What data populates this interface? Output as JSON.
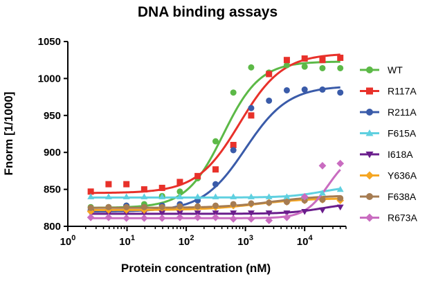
{
  "chart_data": {
    "type": "scatter",
    "title": "DNA binding assays",
    "xlabel": "Protein concentration (nM)",
    "ylabel": "Fnorm [1/1000]",
    "xscale": "log",
    "xlim": [
      1,
      50000
    ],
    "ylim": [
      800,
      1050
    ],
    "grid": false,
    "legend_position": "right",
    "x_ticks": [
      {
        "value": 1,
        "base": "10",
        "exp": "0"
      },
      {
        "value": 10,
        "base": "10",
        "exp": "1"
      },
      {
        "value": 100,
        "base": "10",
        "exp": "2"
      },
      {
        "value": 1000,
        "base": "10",
        "exp": "3"
      },
      {
        "value": 10000,
        "base": "10",
        "exp": "4"
      }
    ],
    "y_ticks": [
      "800",
      "850",
      "900",
      "950",
      "1000",
      "1050"
    ],
    "x": [
      2.44,
      4.88,
      9.77,
      19.5,
      39.1,
      78.1,
      156,
      313,
      625,
      1250,
      2500,
      5000,
      10000,
      20000,
      40000
    ],
    "series": [
      {
        "name": "WT",
        "color": "#5cb947",
        "marker": "circle",
        "values": [
          826,
          826,
          828,
          830,
          841,
          847,
          865,
          915,
          981,
          1015,
          1008,
          1018,
          1016,
          1014,
          1014
        ],
        "fit": {
          "bottom": 825,
          "top": 1023,
          "ec50": 420,
          "hill": 1.4
        }
      },
      {
        "name": "R117A",
        "color": "#e8312a",
        "marker": "square",
        "values": [
          847,
          857,
          857,
          850,
          852,
          860,
          868,
          877,
          910,
          950,
          1006,
          1025,
          1027,
          1025,
          1028
        ],
        "fit": {
          "bottom": 845,
          "top": 1034,
          "ec50": 800,
          "hill": 1.2
        }
      },
      {
        "name": "R211A",
        "color": "#3a5ba9",
        "marker": "circle",
        "values": [
          822,
          822,
          828,
          826,
          828,
          830,
          835,
          857,
          903,
          960,
          970,
          984,
          985,
          985,
          981
        ],
        "fit": {
          "bottom": 820,
          "top": 990,
          "ec50": 1000,
          "hill": 1.2
        }
      },
      {
        "name": "F615A",
        "color": "#5fd0e0",
        "marker": "triangle-up",
        "values": [
          840,
          840,
          840,
          840,
          840,
          840,
          840,
          840,
          840,
          840,
          840,
          840,
          840,
          845,
          850
        ],
        "fit": {
          "bottom": 839,
          "top": 855,
          "ec50": 20000,
          "hill": 1.5
        }
      },
      {
        "name": "I618A",
        "color": "#6a1d8c",
        "marker": "triangle-down",
        "values": [
          818,
          818,
          818,
          818,
          818,
          818,
          818,
          818,
          818,
          818,
          818,
          818,
          820,
          822,
          826
        ],
        "fit": {
          "bottom": 817,
          "top": 832,
          "ec50": 20000,
          "hill": 1.5
        }
      },
      {
        "name": "Y636A",
        "color": "#f5a623",
        "marker": "diamond",
        "values": [
          820,
          822,
          822,
          822,
          825,
          825,
          826,
          826,
          828,
          830,
          832,
          833,
          835,
          836,
          835
        ],
        "fit": {
          "bottom": 822,
          "top": 838,
          "ec50": 1500,
          "hill": 1
        }
      },
      {
        "name": "F638A",
        "color": "#a67c52",
        "marker": "circle",
        "values": [
          825,
          826,
          826,
          826,
          826,
          827,
          827,
          828,
          830,
          831,
          832,
          833,
          835,
          836,
          838
        ],
        "fit": {
          "bottom": 825,
          "top": 842,
          "ec50": 3000,
          "hill": 1
        }
      },
      {
        "name": "R673A",
        "color": "#c96cc0",
        "marker": "diamond",
        "values": [
          812,
          812,
          811,
          811,
          811,
          812,
          812,
          812,
          810,
          810,
          808,
          812,
          840,
          882,
          885
        ],
        "fit": {
          "bottom": 811,
          "top": 900,
          "ec50": 25000,
          "hill": 2.2
        }
      }
    ]
  }
}
